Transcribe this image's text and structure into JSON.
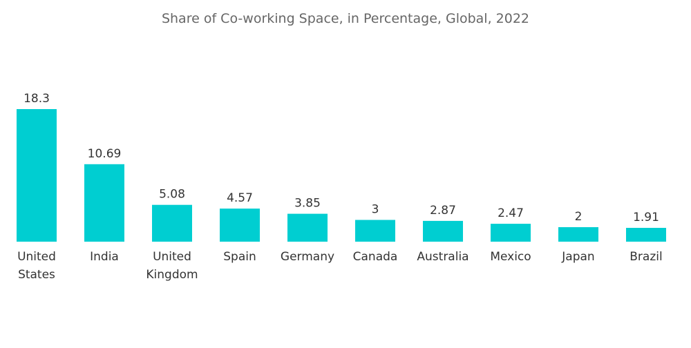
{
  "chart_data": {
    "type": "bar",
    "title": "Share of Co-working Space, in Percentage, Global, 2022",
    "categories": [
      "United States",
      "India",
      "United Kingdom",
      "Spain",
      "Germany",
      "Canada",
      "Australia",
      "Mexico",
      "Japan",
      "Brazil"
    ],
    "category_lines": [
      [
        "United",
        "States"
      ],
      [
        "India"
      ],
      [
        "United",
        "Kingdom"
      ],
      [
        "Spain"
      ],
      [
        "Germany"
      ],
      [
        "Canada"
      ],
      [
        "Australia"
      ],
      [
        "Mexico"
      ],
      [
        "Japan"
      ],
      [
        "Brazil"
      ]
    ],
    "values": [
      18.3,
      10.69,
      5.08,
      4.57,
      3.85,
      3,
      2.87,
      2.47,
      2,
      1.91
    ],
    "value_labels": [
      "18.3",
      "10.69",
      "5.08",
      "4.57",
      "3.85",
      "3",
      "2.87",
      "2.47",
      "2",
      "1.91"
    ],
    "bar_color": "#00CED1",
    "grid": false,
    "legend": "none",
    "xlabel": "",
    "ylabel": ""
  }
}
